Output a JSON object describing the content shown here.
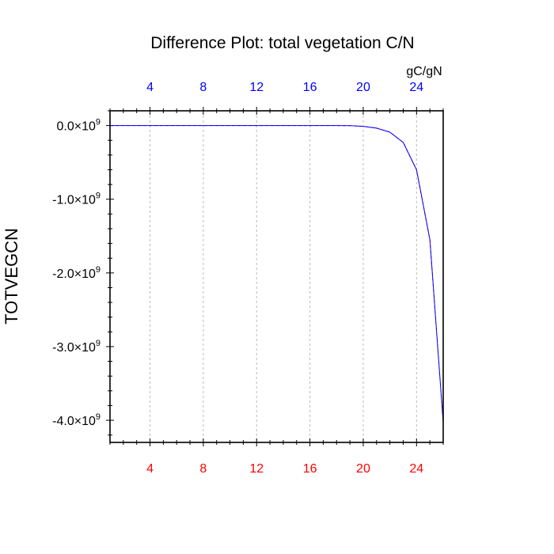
{
  "chart_data": {
    "type": "line",
    "title": "Difference Plot: total vegetation C/N",
    "ylabel": "TOTVEGCN",
    "top_axis_unit_label": "gC/gN",
    "xlim": [
      1,
      26
    ],
    "ylim": [
      -4300000000,
      200000000
    ],
    "x_ticks": [
      4,
      8,
      12,
      16,
      20,
      24
    ],
    "x_tick_labels_top": [
      "4",
      "8",
      "12",
      "16",
      "20",
      "24"
    ],
    "x_tick_labels_bottom": [
      "4",
      "8",
      "12",
      "16",
      "20",
      "24"
    ],
    "top_tick_color": "#0000ff",
    "bottom_tick_color": "#ff0000",
    "y_ticks": [
      0,
      -1000000000,
      -2000000000,
      -3000000000,
      -4000000000
    ],
    "y_tick_labels": [
      {
        "mantissa": "0.0",
        "times": "×",
        "base": "10",
        "exp": "9"
      },
      {
        "mantissa": "-1.0",
        "times": "×",
        "base": "10",
        "exp": "9"
      },
      {
        "mantissa": "-2.0",
        "times": "×",
        "base": "10",
        "exp": "9"
      },
      {
        "mantissa": "-3.0",
        "times": "×",
        "base": "10",
        "exp": "9"
      },
      {
        "mantissa": "-4.0",
        "times": "×",
        "base": "10",
        "exp": "9"
      }
    ],
    "grid": "vertical dashed",
    "series": [
      {
        "color": "#ff0000",
        "dash": "dashed",
        "x": [
          1,
          2,
          3,
          4,
          5,
          6,
          7,
          8,
          9,
          10,
          11,
          12,
          13,
          14,
          15,
          16,
          17,
          18,
          19,
          20,
          21,
          22,
          23,
          24,
          25,
          26
        ],
        "y": [
          0,
          0,
          0,
          0,
          0,
          0,
          0,
          0,
          0,
          0,
          0,
          0,
          0,
          0,
          0,
          0,
          0,
          0,
          -2000000,
          -10000000,
          -35000000,
          -90000000,
          -230000000,
          -600000000,
          -1550000000,
          -4030000000
        ]
      },
      {
        "color": "#0000ff",
        "dash": "solid",
        "x": [
          1,
          2,
          3,
          4,
          5,
          6,
          7,
          8,
          9,
          10,
          11,
          12,
          13,
          14,
          15,
          16,
          17,
          18,
          19,
          20,
          21,
          22,
          23,
          24,
          25,
          26
        ],
        "y": [
          0,
          0,
          0,
          0,
          0,
          0,
          0,
          0,
          0,
          0,
          0,
          0,
          0,
          0,
          0,
          0,
          0,
          0,
          -2000000,
          -10000000,
          -35000000,
          -90000000,
          -230000000,
          -600000000,
          -1550000000,
          -4030000000
        ]
      }
    ]
  }
}
